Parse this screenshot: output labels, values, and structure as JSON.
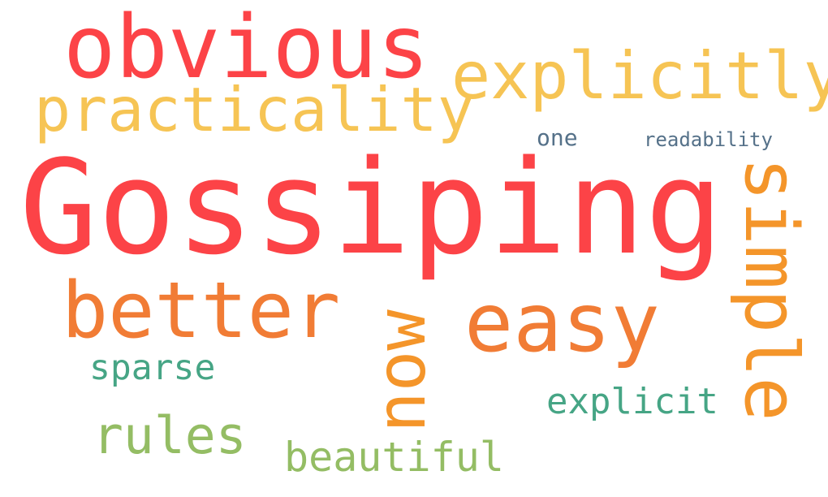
{
  "cloud": {
    "words": {
      "obvious": "obvious",
      "explicitly": "explicitly",
      "practicality": "practicality",
      "one": "one",
      "readability": "readability",
      "gossiping": "Gossiping",
      "simple": "simple",
      "better": "better",
      "easy": "easy",
      "now": "now",
      "sparse": "sparse",
      "explicit": "explicit",
      "rules": "rules",
      "beautiful": "beautiful"
    },
    "palette": {
      "red": "#fc4347",
      "yellow": "#f6c454",
      "orange": "#f17c35",
      "amber": "#f4952a",
      "teal": "#46a585",
      "green": "#94bd64",
      "slate": "#557189"
    }
  }
}
